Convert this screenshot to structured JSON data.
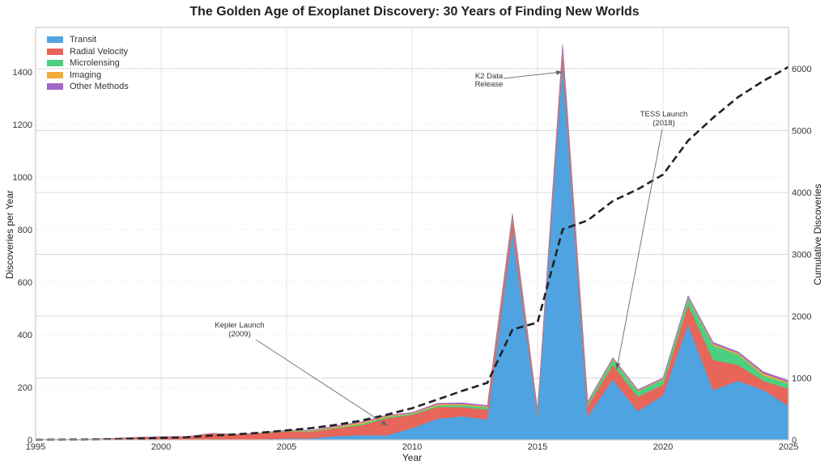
{
  "chart_data": {
    "type": "area",
    "title": "The Golden Age of Exoplanet Discovery: 30 Years of Finding New Worlds",
    "xlabel": "Year",
    "ylabel": "Discoveries per Year",
    "y2label": "Cumulative Discoveries",
    "xlim": [
      1995,
      2025
    ],
    "ylim": [
      0,
      1570
    ],
    "y2lim": [
      0,
      6660
    ],
    "xticks": [
      1995,
      2000,
      2005,
      2010,
      2015,
      2020,
      2025
    ],
    "yticks": [
      0,
      200,
      400,
      600,
      800,
      1000,
      1200,
      1400
    ],
    "y2ticks": [
      0,
      1000,
      2000,
      3000,
      4000,
      5000,
      6000
    ],
    "grid": true,
    "legend_position": "upper left",
    "x": [
      1995,
      1996,
      1997,
      1998,
      1999,
      2000,
      2001,
      2002,
      2003,
      2004,
      2005,
      2006,
      2007,
      2008,
      2009,
      2010,
      2011,
      2012,
      2013,
      2014,
      2015,
      2016,
      2017,
      2018,
      2019,
      2020,
      2021,
      2022,
      2023,
      2024,
      2025
    ],
    "series": [
      {
        "name": "Transit",
        "color": "#4fa3e0",
        "values": [
          0,
          0,
          0,
          0,
          0,
          0,
          0,
          0,
          1,
          3,
          5,
          6,
          15,
          18,
          18,
          45,
          80,
          90,
          78,
          800,
          90,
          1440,
          90,
          230,
          110,
          170,
          440,
          190,
          225,
          190,
          130
        ]
      },
      {
        "name": "Radial Velocity",
        "color": "#e8655a",
        "values": [
          1,
          2,
          2,
          5,
          10,
          12,
          12,
          25,
          20,
          22,
          27,
          25,
          30,
          38,
          65,
          50,
          45,
          35,
          38,
          45,
          15,
          50,
          40,
          55,
          55,
          40,
          75,
          115,
          60,
          35,
          65
        ]
      },
      {
        "name": "Microlensing",
        "color": "#4cd080",
        "values": [
          0,
          0,
          0,
          0,
          0,
          0,
          0,
          0,
          0,
          1,
          2,
          2,
          3,
          5,
          5,
          4,
          6,
          8,
          8,
          8,
          5,
          8,
          10,
          20,
          20,
          20,
          25,
          55,
          40,
          20,
          20
        ]
      },
      {
        "name": "Imaging",
        "color": "#f3a93b",
        "values": [
          0,
          0,
          0,
          0,
          0,
          0,
          0,
          0,
          0,
          1,
          2,
          3,
          4,
          6,
          4,
          3,
          5,
          4,
          4,
          4,
          2,
          3,
          3,
          5,
          3,
          3,
          5,
          6,
          5,
          8,
          5
        ]
      },
      {
        "name": "Other Methods",
        "color": "#a066c8",
        "values": [
          0,
          0,
          0,
          0,
          0,
          0,
          0,
          0,
          0,
          0,
          1,
          1,
          2,
          2,
          2,
          2,
          3,
          4,
          3,
          4,
          2,
          4,
          3,
          3,
          3,
          3,
          4,
          5,
          5,
          6,
          6
        ]
      }
    ],
    "cumulative": {
      "name": "Cumulative",
      "style": "dashed",
      "color": "#222222",
      "values": [
        1,
        3,
        5,
        10,
        20,
        32,
        44,
        69,
        90,
        117,
        154,
        191,
        245,
        314,
        408,
        512,
        651,
        792,
        923,
        1784,
        1898,
        3403,
        3549,
        3862,
        4053,
        4289,
        4838,
        5209,
        5544,
        5803,
        6029
      ]
    },
    "annotations": [
      {
        "text": "Kepler Launch\n(2009)",
        "xy": [
          2009,
          50
        ],
        "xytext": [
          2004.5,
          420
        ]
      },
      {
        "text": "K2 Data\nRelease",
        "xy": [
          2016,
          1400
        ],
        "xytext": [
          2013.5,
          1375
        ]
      },
      {
        "text": "TESS Launch\n(2018)",
        "xy": [
          2018,
          290
        ],
        "xytext": [
          2020.5,
          1200
        ]
      }
    ]
  },
  "legend": {
    "items": [
      {
        "label": "Transit",
        "color": "#4fa3e0"
      },
      {
        "label": "Radial Velocity",
        "color": "#e8655a"
      },
      {
        "label": "Microlensing",
        "color": "#4cd080"
      },
      {
        "label": "Imaging",
        "color": "#f3a93b"
      },
      {
        "label": "Other Methods",
        "color": "#a066c8"
      }
    ]
  },
  "annotations_text": {
    "kepler_1": "Kepler Launch",
    "kepler_2": "(2009)",
    "k2_1": "K2 Data",
    "k2_2": "Release",
    "tess_1": "TESS Launch",
    "tess_2": "(2018)"
  }
}
